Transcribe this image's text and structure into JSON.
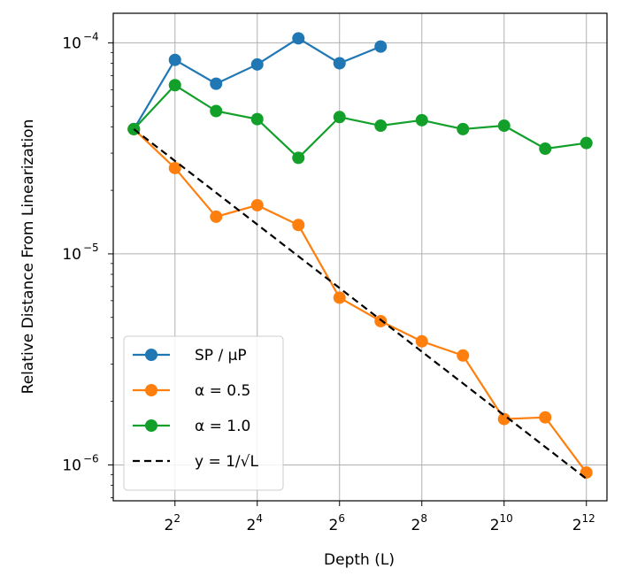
{
  "chart_data": {
    "type": "line",
    "title": "",
    "xlabel": "Depth (L)",
    "ylabel": "Relative Distance From Linearization",
    "x_scale": "log2",
    "y_scale": "log10",
    "xlim_log2": [
      0.5,
      12.5
    ],
    "ylim_log10": [
      -6.17,
      -3.86
    ],
    "x_ticks_log2": [
      2,
      4,
      6,
      8,
      10,
      12
    ],
    "x_tick_base": "2",
    "y_ticks_log10": [
      -4,
      -5,
      -6
    ],
    "y_tick_base": "10",
    "grid": true,
    "legend_position": "lower-left",
    "series": [
      {
        "name": "SP / μP",
        "color": "#1f77b4",
        "style": "solid",
        "marker": true,
        "x_log2": [
          1,
          2,
          3,
          4,
          5,
          6,
          7
        ],
        "y": [
          3.9e-05,
          8.3e-05,
          6.4e-05,
          7.9e-05,
          0.000105,
          8e-05,
          9.6e-05
        ]
      },
      {
        "name": "α = 0.5",
        "color": "#ff7f0e",
        "style": "solid",
        "marker": true,
        "x_log2": [
          1,
          2,
          3,
          4,
          5,
          6,
          7,
          8,
          9,
          10,
          11,
          12
        ],
        "y": [
          3.9e-05,
          2.55e-05,
          1.5e-05,
          1.7e-05,
          1.37e-05,
          6.2e-06,
          4.8e-06,
          3.85e-06,
          3.3e-06,
          1.65e-06,
          1.68e-06,
          9.2e-07
        ]
      },
      {
        "name": "α = 1.0",
        "color": "#12a02a",
        "style": "solid",
        "marker": true,
        "x_log2": [
          1,
          2,
          3,
          4,
          5,
          6,
          7,
          8,
          9,
          10,
          11,
          12
        ],
        "y": [
          3.9e-05,
          6.3e-05,
          4.75e-05,
          4.35e-05,
          2.85e-05,
          4.45e-05,
          4.05e-05,
          4.3e-05,
          3.9e-05,
          4.05e-05,
          3.15e-05,
          3.35e-05
        ]
      },
      {
        "name": "y = 1/√L",
        "color": "#000000",
        "style": "dashed",
        "marker": false,
        "x_log2": [
          1,
          12
        ],
        "y": [
          3.9e-05,
          8.6e-07
        ]
      }
    ]
  }
}
